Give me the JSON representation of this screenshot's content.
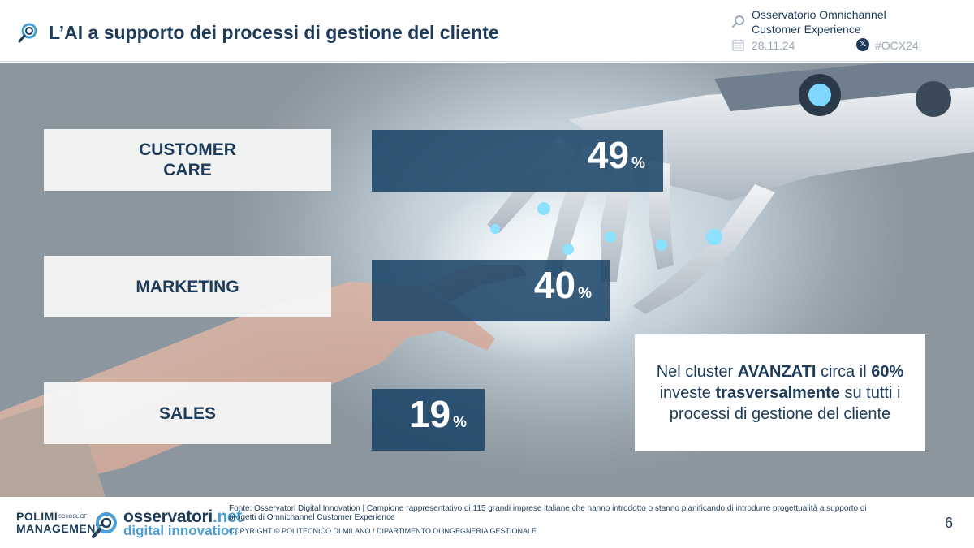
{
  "header": {
    "title": "L’AI a supporto dei processi di gestione del cliente",
    "observatory_line1": "Osservatorio Omnichannel",
    "observatory_line2": "Customer Experience",
    "date": "28.11.24",
    "x_icon_label": "𝕏",
    "hashtag": "#OCX24"
  },
  "chart_data": {
    "type": "bar",
    "orientation": "horizontal",
    "title": "L’AI a supporto dei processi di gestione del cliente",
    "categories": [
      "CUSTOMER\nCARE",
      "MARKETING",
      "SALES"
    ],
    "values": [
      49,
      40,
      19
    ],
    "value_suffix": "%",
    "xlim": [
      0,
      100
    ],
    "xlabel": "",
    "ylabel": ""
  },
  "callout": {
    "part1": "Nel cluster ",
    "bold1": "AVANZATI",
    "part2": " circa il ",
    "bold2": "60%",
    "part3": " investe ",
    "bold3": "trasversalmente",
    "part4": " su tutti i processi di gestione del cliente"
  },
  "footer": {
    "polimi_line1": "POLIMI",
    "polimi_line2": "MANAGEMENT",
    "polimi_small": "SCHOOL OF",
    "logo_osservatori": "osservatori",
    "logo_net": ".net",
    "logo_digital": "digital innovation",
    "source": "Fonte: Osservatori Digital Innovation | Campione rappresentativo di 115 grandi imprese italiane che hanno introdotto o stanno pianificando di introdurre progettualità a supporto di progetti di Omnichannel Customer Experience",
    "copyright": "COPYRIGHT © POLITECNICO DI MILANO / DIPARTIMENTO DI INGEGNERIA GESTIONALE",
    "page_number": "6"
  },
  "colors": {
    "navy": "#1d3b5a",
    "bar": "#194267",
    "accent_blue": "#4a9fd6",
    "muted": "#9aa8b8"
  }
}
